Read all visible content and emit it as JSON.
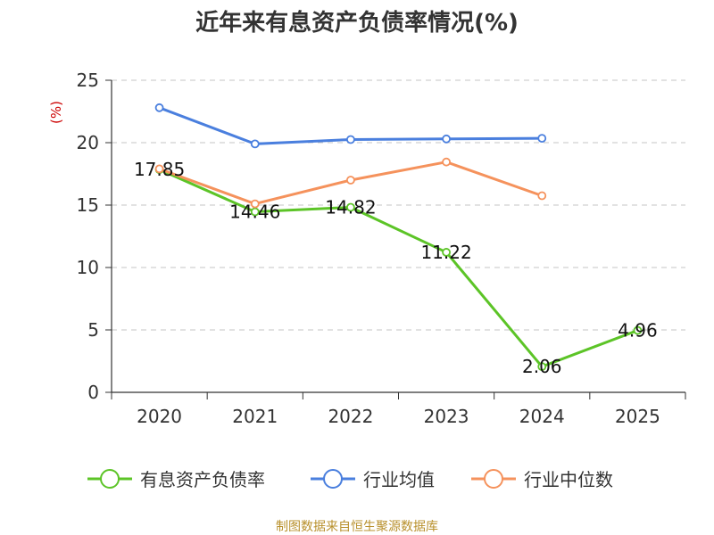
{
  "chart_data": {
    "type": "line",
    "title": "近年来有息资产负债率情况(%)",
    "ylabel": "(%)",
    "xlabel": "",
    "categories": [
      "2020",
      "2021",
      "2022",
      "2023",
      "2024",
      "2025"
    ],
    "ylim": [
      0,
      25
    ],
    "yticks": [
      0,
      5,
      10,
      15,
      20,
      25
    ],
    "grid": true,
    "legend_position": "bottom",
    "series": [
      {
        "name": "有息资产负债率",
        "color": "#5cc427",
        "show_labels": true,
        "values": [
          17.85,
          14.46,
          14.82,
          11.22,
          2.06,
          4.96
        ],
        "labels": [
          "17.85",
          "14.46",
          "14.82",
          "11.22",
          "2.06",
          "4.96"
        ]
      },
      {
        "name": "行业均值",
        "color": "#4a7fde",
        "show_labels": false,
        "values": [
          22.8,
          19.9,
          20.25,
          20.3,
          20.35,
          null
        ]
      },
      {
        "name": "行业中位数",
        "color": "#f5925c",
        "show_labels": false,
        "values": [
          17.9,
          15.1,
          17.0,
          18.45,
          15.75,
          null
        ]
      }
    ],
    "source": "制图数据来自恒生聚源数据库"
  }
}
